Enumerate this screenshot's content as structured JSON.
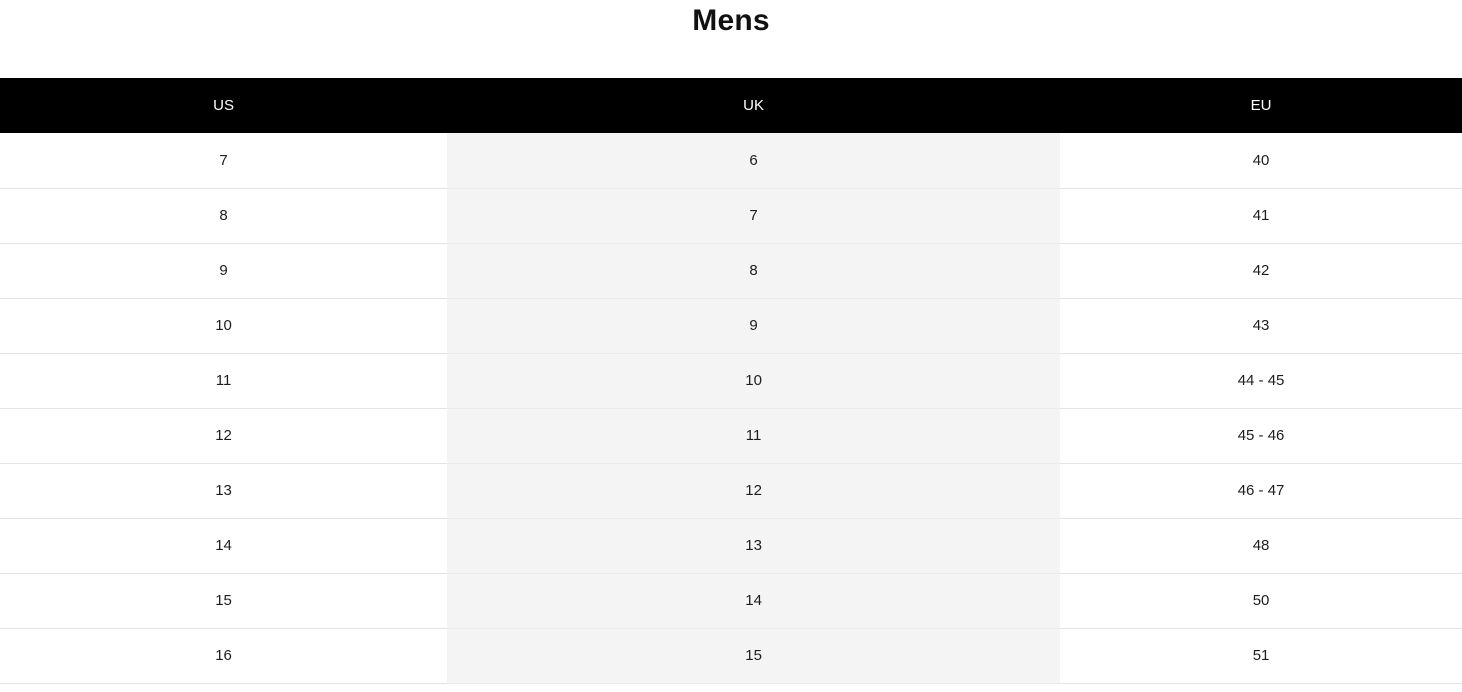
{
  "page": {
    "title": "Mens"
  },
  "table": {
    "columns": [
      {
        "label": "US"
      },
      {
        "label": "UK"
      },
      {
        "label": "EU"
      }
    ],
    "rows": [
      [
        "7",
        "6",
        "40"
      ],
      [
        "8",
        "7",
        "41"
      ],
      [
        "9",
        "8",
        "42"
      ],
      [
        "10",
        "9",
        "43"
      ],
      [
        "11",
        "10",
        "44 - 45"
      ],
      [
        "12",
        "11",
        "45 - 46"
      ],
      [
        "13",
        "12",
        "46 - 47"
      ],
      [
        "14",
        "13",
        "48"
      ],
      [
        "15",
        "14",
        "50"
      ],
      [
        "16",
        "15",
        "51"
      ]
    ],
    "shaded_column_index": 1
  },
  "colors": {
    "header_bg": "#000000",
    "header_text": "#ffffff",
    "shaded_column_bg": "#f4f4f4",
    "row_border": "#e3e3e3",
    "cell_text": "#1d1d1d",
    "title_text": "#111111",
    "page_bg": "#ffffff"
  }
}
